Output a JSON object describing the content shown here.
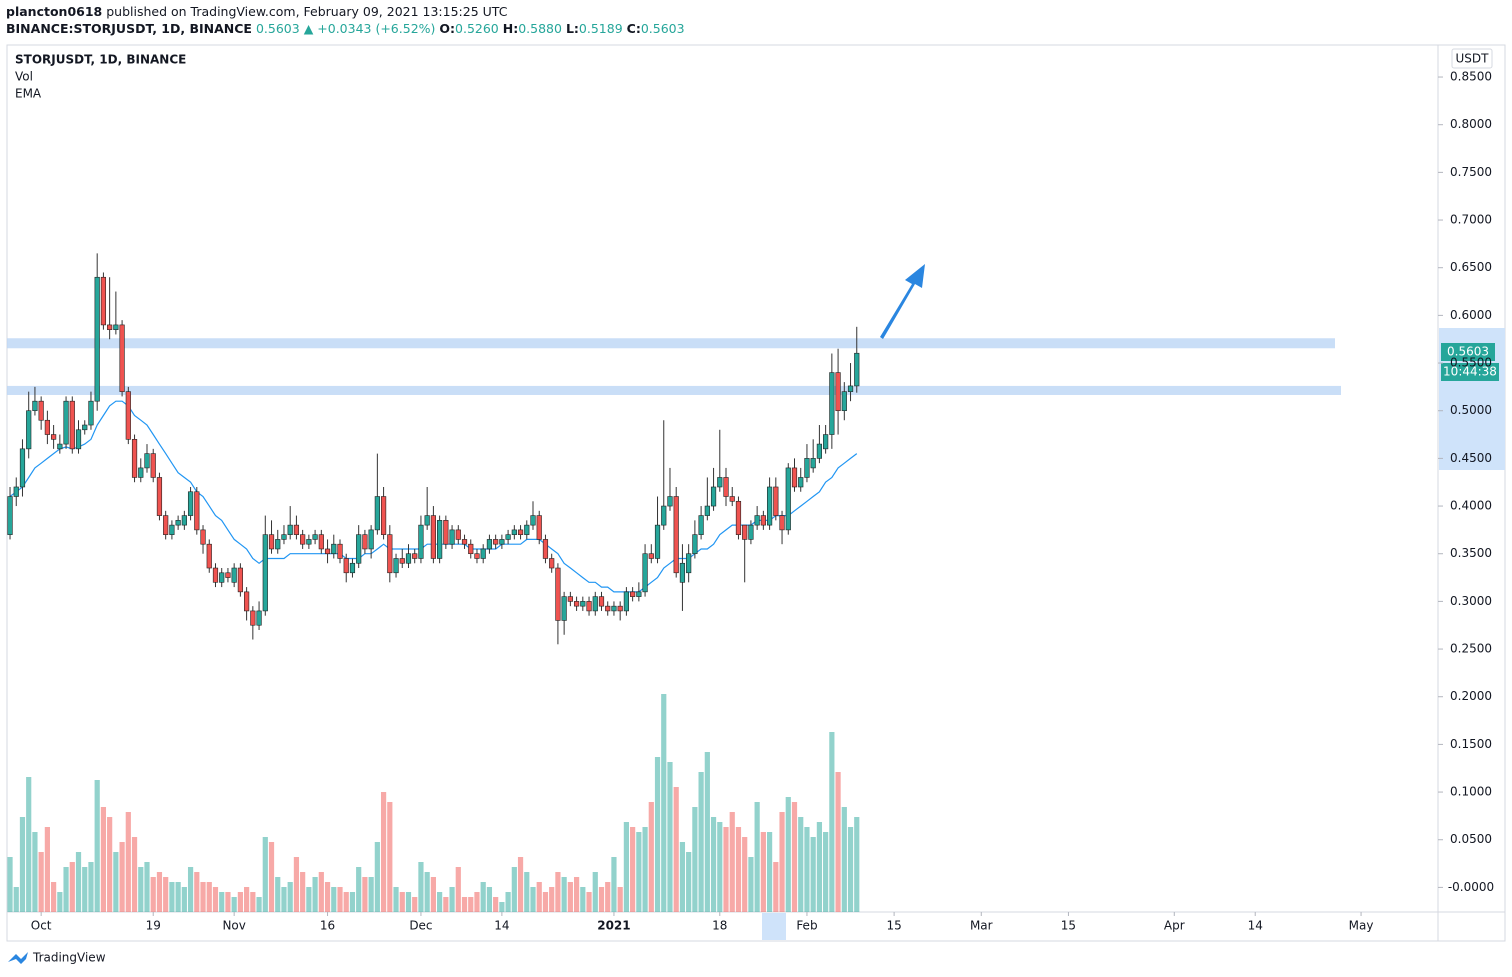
{
  "header": {
    "author": "plancton0618",
    "published": "published on TradingView.com, February 09, 2021 13:15:25 UTC",
    "symbol": "BINANCE:STORJUSDT, 1D, BINANCE",
    "last": "0.5603",
    "change": "▲ +0.0343 (+6.52%)",
    "o_label": "O:",
    "open": "0.5260",
    "h_label": "H:",
    "high": "0.5880",
    "l_label": "L:",
    "low": "0.5189",
    "c_label": "C:",
    "close": "0.5603"
  },
  "chart_data": {
    "type": "candlestick",
    "title": "STORJUSDT, 1D, BINANCE",
    "studies": [
      "Vol",
      "EMA"
    ],
    "currency": "USDT",
    "price_label": "0.5603",
    "countdown": "10:44:38",
    "brand": "TradingView",
    "up_color": "#26a69a",
    "down_color": "#ef5350",
    "ema_color": "#2196f3",
    "zone_color": "#bbd6f5",
    "x": [
      "2020-09-26",
      "2020-09-27",
      "2020-09-28",
      "2020-09-29",
      "2020-09-30",
      "2020-10-01",
      "2020-10-02",
      "2020-10-03",
      "2020-10-04",
      "2020-10-05",
      "2020-10-06",
      "2020-10-07",
      "2020-10-08",
      "2020-10-09",
      "2020-10-10",
      "2020-10-11",
      "2020-10-12",
      "2020-10-13",
      "2020-10-14",
      "2020-10-15",
      "2020-10-16",
      "2020-10-17",
      "2020-10-18",
      "2020-10-19",
      "2020-10-20",
      "2020-10-21",
      "2020-10-22",
      "2020-10-23",
      "2020-10-24",
      "2020-10-25",
      "2020-10-26",
      "2020-10-27",
      "2020-10-28",
      "2020-10-29",
      "2020-10-30",
      "2020-10-31",
      "2020-11-01",
      "2020-11-02",
      "2020-11-03",
      "2020-11-04",
      "2020-11-05",
      "2020-11-06",
      "2020-11-07",
      "2020-11-08",
      "2020-11-09",
      "2020-11-10",
      "2020-11-11",
      "2020-11-12",
      "2020-11-13",
      "2020-11-14",
      "2020-11-15",
      "2020-11-16",
      "2020-11-17",
      "2020-11-18",
      "2020-11-19",
      "2020-11-20",
      "2020-11-21",
      "2020-11-22",
      "2020-11-23",
      "2020-11-24",
      "2020-11-25",
      "2020-11-26",
      "2020-11-27",
      "2020-11-28",
      "2020-11-29",
      "2020-11-30",
      "2020-12-01",
      "2020-12-02",
      "2020-12-03",
      "2020-12-04",
      "2020-12-05",
      "2020-12-06",
      "2020-12-07",
      "2020-12-08",
      "2020-12-09",
      "2020-12-10",
      "2020-12-11",
      "2020-12-12",
      "2020-12-13",
      "2020-12-14",
      "2020-12-15",
      "2020-12-16",
      "2020-12-17",
      "2020-12-18",
      "2020-12-19",
      "2020-12-20",
      "2020-12-21",
      "2020-12-22",
      "2020-12-23",
      "2020-12-24",
      "2020-12-25",
      "2020-12-26",
      "2020-12-27",
      "2020-12-28",
      "2020-12-29",
      "2020-12-30",
      "2020-12-31",
      "2021-01-01",
      "2021-01-02",
      "2021-01-03",
      "2021-01-04",
      "2021-01-05",
      "2021-01-06",
      "2021-01-07",
      "2021-01-08",
      "2021-01-09",
      "2021-01-10",
      "2021-01-11",
      "2021-01-12",
      "2021-01-13",
      "2021-01-14",
      "2021-01-15",
      "2021-01-16",
      "2021-01-17",
      "2021-01-18",
      "2021-01-19",
      "2021-01-20",
      "2021-01-21",
      "2021-01-22",
      "2021-01-23",
      "2021-01-24",
      "2021-01-25",
      "2021-01-26",
      "2021-01-27",
      "2021-01-28",
      "2021-01-29",
      "2021-01-30",
      "2021-01-31",
      "2021-02-01",
      "2021-02-02",
      "2021-02-03",
      "2021-02-04",
      "2021-02-05",
      "2021-02-06",
      "2021-02-07",
      "2021-02-08",
      "2021-02-09"
    ],
    "open": [
      0.37,
      0.41,
      0.42,
      0.46,
      0.5,
      0.51,
      0.49,
      0.475,
      0.46,
      0.465,
      0.51,
      0.46,
      0.48,
      0.485,
      0.51,
      0.64,
      0.59,
      0.585,
      0.59,
      0.52,
      0.47,
      0.43,
      0.44,
      0.455,
      0.43,
      0.39,
      0.37,
      0.38,
      0.38,
      0.39,
      0.415,
      0.375,
      0.36,
      0.335,
      0.32,
      0.33,
      0.32,
      0.335,
      0.31,
      0.29,
      0.275,
      0.29,
      0.37,
      0.355,
      0.365,
      0.37,
      0.38,
      0.37,
      0.36,
      0.365,
      0.37,
      0.355,
      0.35,
      0.36,
      0.345,
      0.33,
      0.34,
      0.37,
      0.355,
      0.375,
      0.41,
      0.37,
      0.33,
      0.345,
      0.34,
      0.35,
      0.345,
      0.38,
      0.39,
      0.345,
      0.385,
      0.36,
      0.375,
      0.365,
      0.36,
      0.35,
      0.345,
      0.355,
      0.365,
      0.36,
      0.365,
      0.37,
      0.375,
      0.37,
      0.38,
      0.39,
      0.365,
      0.345,
      0.335,
      0.28,
      0.305,
      0.3,
      0.295,
      0.3,
      0.29,
      0.305,
      0.295,
      0.29,
      0.295,
      0.29,
      0.31,
      0.305,
      0.31,
      0.35,
      0.345,
      0.38,
      0.4,
      0.41,
      0.32,
      0.33,
      0.35,
      0.37,
      0.39,
      0.4,
      0.42,
      0.43,
      0.41,
      0.405,
      0.38,
      0.365,
      0.38,
      0.39,
      0.38,
      0.42,
      0.39,
      0.375,
      0.44,
      0.42,
      0.43,
      0.44,
      0.45,
      0.46,
      0.475,
      0.54,
      0.5,
      0.52,
      0.526
    ],
    "high": [
      0.42,
      0.43,
      0.47,
      0.52,
      0.525,
      0.515,
      0.5,
      0.485,
      0.475,
      0.515,
      0.515,
      0.49,
      0.49,
      0.52,
      0.665,
      0.645,
      0.64,
      0.625,
      0.595,
      0.525,
      0.475,
      0.45,
      0.465,
      0.46,
      0.435,
      0.395,
      0.385,
      0.39,
      0.395,
      0.42,
      0.42,
      0.38,
      0.365,
      0.34,
      0.335,
      0.335,
      0.34,
      0.34,
      0.315,
      0.295,
      0.3,
      0.39,
      0.385,
      0.375,
      0.38,
      0.4,
      0.39,
      0.375,
      0.37,
      0.375,
      0.375,
      0.365,
      0.37,
      0.365,
      0.35,
      0.345,
      0.38,
      0.375,
      0.38,
      0.455,
      0.42,
      0.38,
      0.35,
      0.355,
      0.36,
      0.355,
      0.39,
      0.42,
      0.4,
      0.39,
      0.39,
      0.38,
      0.38,
      0.37,
      0.365,
      0.355,
      0.36,
      0.37,
      0.37,
      0.37,
      0.375,
      0.38,
      0.38,
      0.385,
      0.405,
      0.395,
      0.37,
      0.35,
      0.34,
      0.31,
      0.31,
      0.305,
      0.305,
      0.305,
      0.31,
      0.31,
      0.3,
      0.3,
      0.3,
      0.315,
      0.315,
      0.32,
      0.36,
      0.36,
      0.41,
      0.49,
      0.44,
      0.42,
      0.36,
      0.36,
      0.385,
      0.4,
      0.43,
      0.44,
      0.48,
      0.44,
      0.42,
      0.41,
      0.38,
      0.385,
      0.4,
      0.395,
      0.43,
      0.43,
      0.395,
      0.445,
      0.45,
      0.44,
      0.465,
      0.47,
      0.485,
      0.485,
      0.56,
      0.565,
      0.53,
      0.55,
      0.588
    ],
    "low": [
      0.365,
      0.4,
      0.41,
      0.45,
      0.495,
      0.48,
      0.465,
      0.46,
      0.455,
      0.46,
      0.455,
      0.455,
      0.475,
      0.48,
      0.5,
      0.585,
      0.575,
      0.58,
      0.515,
      0.465,
      0.425,
      0.425,
      0.435,
      0.425,
      0.385,
      0.365,
      0.365,
      0.375,
      0.375,
      0.385,
      0.37,
      0.35,
      0.33,
      0.315,
      0.315,
      0.32,
      0.315,
      0.305,
      0.28,
      0.26,
      0.27,
      0.285,
      0.35,
      0.35,
      0.36,
      0.365,
      0.365,
      0.355,
      0.355,
      0.36,
      0.35,
      0.34,
      0.345,
      0.34,
      0.32,
      0.325,
      0.335,
      0.35,
      0.345,
      0.37,
      0.365,
      0.32,
      0.325,
      0.335,
      0.335,
      0.34,
      0.34,
      0.375,
      0.34,
      0.34,
      0.355,
      0.355,
      0.36,
      0.355,
      0.345,
      0.34,
      0.34,
      0.35,
      0.355,
      0.355,
      0.36,
      0.365,
      0.365,
      0.365,
      0.375,
      0.36,
      0.34,
      0.33,
      0.255,
      0.265,
      0.295,
      0.29,
      0.29,
      0.285,
      0.285,
      0.29,
      0.285,
      0.285,
      0.28,
      0.285,
      0.3,
      0.3,
      0.305,
      0.34,
      0.34,
      0.375,
      0.395,
      0.325,
      0.29,
      0.32,
      0.345,
      0.365,
      0.385,
      0.395,
      0.415,
      0.4,
      0.4,
      0.365,
      0.32,
      0.36,
      0.375,
      0.375,
      0.375,
      0.385,
      0.36,
      0.37,
      0.415,
      0.415,
      0.425,
      0.435,
      0.445,
      0.455,
      0.46,
      0.475,
      0.49,
      0.51,
      0.5189
    ],
    "close": [
      0.41,
      0.42,
      0.46,
      0.5,
      0.51,
      0.49,
      0.475,
      0.47,
      0.465,
      0.51,
      0.46,
      0.48,
      0.485,
      0.51,
      0.64,
      0.59,
      0.585,
      0.59,
      0.52,
      0.47,
      0.43,
      0.44,
      0.455,
      0.43,
      0.39,
      0.37,
      0.38,
      0.385,
      0.39,
      0.415,
      0.375,
      0.36,
      0.335,
      0.32,
      0.33,
      0.325,
      0.335,
      0.31,
      0.29,
      0.275,
      0.29,
      0.37,
      0.355,
      0.365,
      0.37,
      0.38,
      0.37,
      0.36,
      0.365,
      0.37,
      0.355,
      0.35,
      0.36,
      0.345,
      0.33,
      0.34,
      0.37,
      0.355,
      0.375,
      0.41,
      0.37,
      0.33,
      0.345,
      0.34,
      0.35,
      0.345,
      0.38,
      0.39,
      0.345,
      0.385,
      0.36,
      0.375,
      0.365,
      0.36,
      0.35,
      0.345,
      0.355,
      0.365,
      0.36,
      0.365,
      0.37,
      0.375,
      0.37,
      0.38,
      0.39,
      0.365,
      0.345,
      0.335,
      0.28,
      0.305,
      0.3,
      0.295,
      0.3,
      0.29,
      0.305,
      0.295,
      0.29,
      0.295,
      0.29,
      0.31,
      0.305,
      0.31,
      0.35,
      0.345,
      0.38,
      0.4,
      0.41,
      0.33,
      0.34,
      0.35,
      0.37,
      0.39,
      0.4,
      0.42,
      0.43,
      0.41,
      0.405,
      0.37,
      0.365,
      0.38,
      0.39,
      0.38,
      0.42,
      0.39,
      0.375,
      0.44,
      0.42,
      0.43,
      0.45,
      0.45,
      0.465,
      0.475,
      0.54,
      0.5,
      0.52,
      0.526,
      0.5603
    ],
    "volume": [
      5.5,
      2.5,
      9.5,
      13.5,
      8,
      6,
      8.5,
      3,
      2,
      4.5,
      5,
      6,
      4.5,
      5,
      13.2,
      10.5,
      9.5,
      6,
      7,
      10,
      7.5,
      4.5,
      5,
      3.5,
      4,
      3.5,
      3,
      3,
      2.5,
      4.5,
      4,
      3,
      3,
      2.5,
      2,
      2,
      1.5,
      2,
      2.5,
      2,
      1.5,
      7.5,
      7,
      3.5,
      2.5,
      3,
      5.5,
      4,
      2.5,
      3.5,
      4,
      3,
      2.5,
      2.5,
      2,
      2,
      4.5,
      3.5,
      3.5,
      7,
      12,
      11,
      2.5,
      2,
      2,
      1.5,
      5,
      4,
      3.5,
      2,
      1.5,
      2.5,
      4.5,
      1.5,
      1.5,
      2,
      3,
      2.5,
      1.5,
      1,
      2,
      4.5,
      5.5,
      4,
      2.5,
      3,
      2,
      2.5,
      4,
      3.5,
      3,
      3.5,
      2.5,
      2,
      4,
      2.5,
      3,
      5.5,
      2.5,
      9,
      8.5,
      8,
      8.5,
      11,
      15.5,
      21.8,
      15,
      12.5,
      7,
      6,
      10.5,
      14,
      16,
      9.5,
      9,
      8.5,
      10,
      8.5,
      7.5,
      5.5,
      11,
      8,
      8,
      5,
      10,
      11.5,
      11,
      9.5,
      8.5,
      7.5,
      9,
      8,
      18,
      14,
      10.5,
      8.5,
      9.5
    ],
    "ema": [
      0.41,
      0.415,
      0.42,
      0.43,
      0.44,
      0.445,
      0.45,
      0.455,
      0.46,
      0.462,
      0.46,
      0.462,
      0.465,
      0.47,
      0.485,
      0.495,
      0.505,
      0.51,
      0.51,
      0.505,
      0.495,
      0.49,
      0.485,
      0.475,
      0.465,
      0.455,
      0.445,
      0.435,
      0.43,
      0.425,
      0.415,
      0.41,
      0.4,
      0.39,
      0.385,
      0.375,
      0.365,
      0.36,
      0.355,
      0.345,
      0.34,
      0.345,
      0.345,
      0.345,
      0.345,
      0.35,
      0.35,
      0.35,
      0.35,
      0.35,
      0.35,
      0.35,
      0.35,
      0.35,
      0.345,
      0.345,
      0.345,
      0.35,
      0.35,
      0.355,
      0.36,
      0.355,
      0.355,
      0.355,
      0.355,
      0.355,
      0.355,
      0.36,
      0.36,
      0.36,
      0.36,
      0.36,
      0.36,
      0.36,
      0.355,
      0.355,
      0.355,
      0.355,
      0.355,
      0.36,
      0.36,
      0.36,
      0.36,
      0.365,
      0.365,
      0.365,
      0.36,
      0.355,
      0.35,
      0.34,
      0.335,
      0.33,
      0.325,
      0.32,
      0.32,
      0.315,
      0.315,
      0.31,
      0.31,
      0.31,
      0.31,
      0.31,
      0.315,
      0.32,
      0.325,
      0.335,
      0.34,
      0.345,
      0.345,
      0.345,
      0.35,
      0.355,
      0.355,
      0.36,
      0.37,
      0.375,
      0.38,
      0.38,
      0.38,
      0.38,
      0.385,
      0.385,
      0.385,
      0.39,
      0.39,
      0.39,
      0.395,
      0.4,
      0.405,
      0.41,
      0.415,
      0.425,
      0.43,
      0.44,
      0.445,
      0.45,
      0.455
    ],
    "zones": [
      [
        0.5655,
        0.576
      ],
      [
        0.5165,
        0.526
      ]
    ],
    "xlim": [
      "2020-09-25",
      "2021-05-14"
    ],
    "xticks": [
      {
        "value": "2020-10-01",
        "label": "Oct"
      },
      {
        "value": "2020-10-19",
        "label": "19"
      },
      {
        "value": "2020-11-01",
        "label": "Nov"
      },
      {
        "value": "2020-11-16",
        "label": "16"
      },
      {
        "value": "2020-12-01",
        "label": "Dec"
      },
      {
        "value": "2020-12-14",
        "label": "14"
      },
      {
        "value": "2021-01-01",
        "label": "2021"
      },
      {
        "value": "2021-01-18",
        "label": "18"
      },
      {
        "value": "2021-02-01",
        "label": "Feb"
      },
      {
        "value": "2021-02-15",
        "label": "15"
      },
      {
        "value": "2021-03-01",
        "label": "Mar"
      },
      {
        "value": "2021-03-15",
        "label": "15"
      },
      {
        "value": "2021-04-01",
        "label": "Apr"
      },
      {
        "value": "2021-04-14",
        "label": "14"
      },
      {
        "value": "2021-05-01",
        "label": "May"
      }
    ],
    "ylim": [
      -0.0258,
      0.8836
    ],
    "yticks": [
      {
        "value": 0.85,
        "label": "0.8500"
      },
      {
        "value": 0.8,
        "label": "0.8000"
      },
      {
        "value": 0.75,
        "label": "0.7500"
      },
      {
        "value": 0.7,
        "label": "0.7000"
      },
      {
        "value": 0.65,
        "label": "0.6500"
      },
      {
        "value": 0.6,
        "label": "0.6000"
      },
      {
        "value": 0.55,
        "label": "0.5500"
      },
      {
        "value": 0.5,
        "label": "0.5000"
      },
      {
        "value": 0.45,
        "label": "0.4500"
      },
      {
        "value": 0.4,
        "label": "0.4000"
      },
      {
        "value": 0.35,
        "label": "0.3500"
      },
      {
        "value": 0.3,
        "label": "0.3000"
      },
      {
        "value": 0.25,
        "label": "0.2500"
      },
      {
        "value": 0.2,
        "label": "0.2000"
      },
      {
        "value": 0.15,
        "label": "0.1500"
      },
      {
        "value": 0.1,
        "label": "0.1000"
      },
      {
        "value": 0.05,
        "label": "0.0500"
      },
      {
        "value": 0,
        "label": "-0.0000"
      }
    ],
    "grid": false
  }
}
